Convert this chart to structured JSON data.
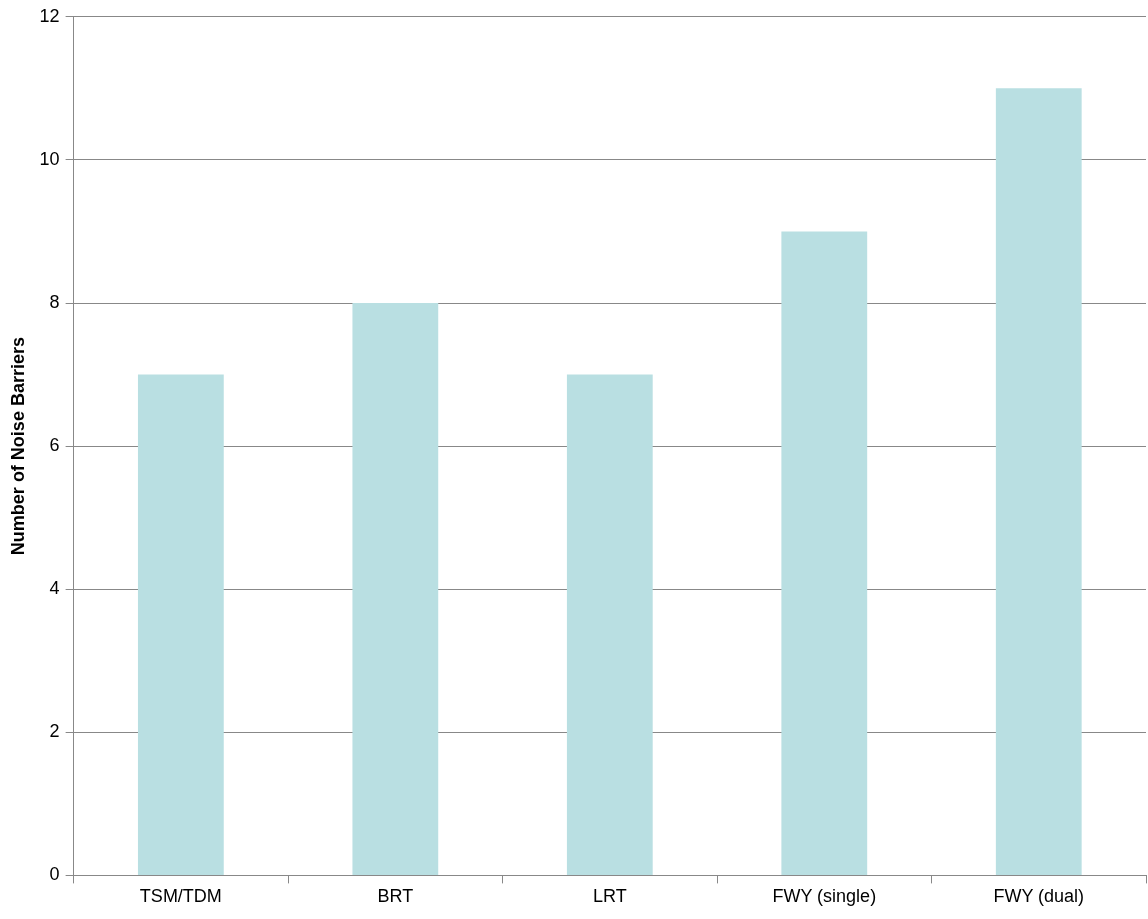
{
  "chart_data": {
    "type": "bar",
    "ylabel": "Number of Noise Barriers",
    "categories": [
      "TSM/TDM",
      "BRT",
      "LRT",
      "FWY (single)",
      "FWY (dual)"
    ],
    "values": [
      7,
      8,
      7,
      9,
      11
    ],
    "color": "#b9dfe2",
    "ylim": [
      0,
      12
    ],
    "yticks": [
      0,
      2,
      4,
      6,
      8,
      10,
      12
    ],
    "grid": "y"
  }
}
